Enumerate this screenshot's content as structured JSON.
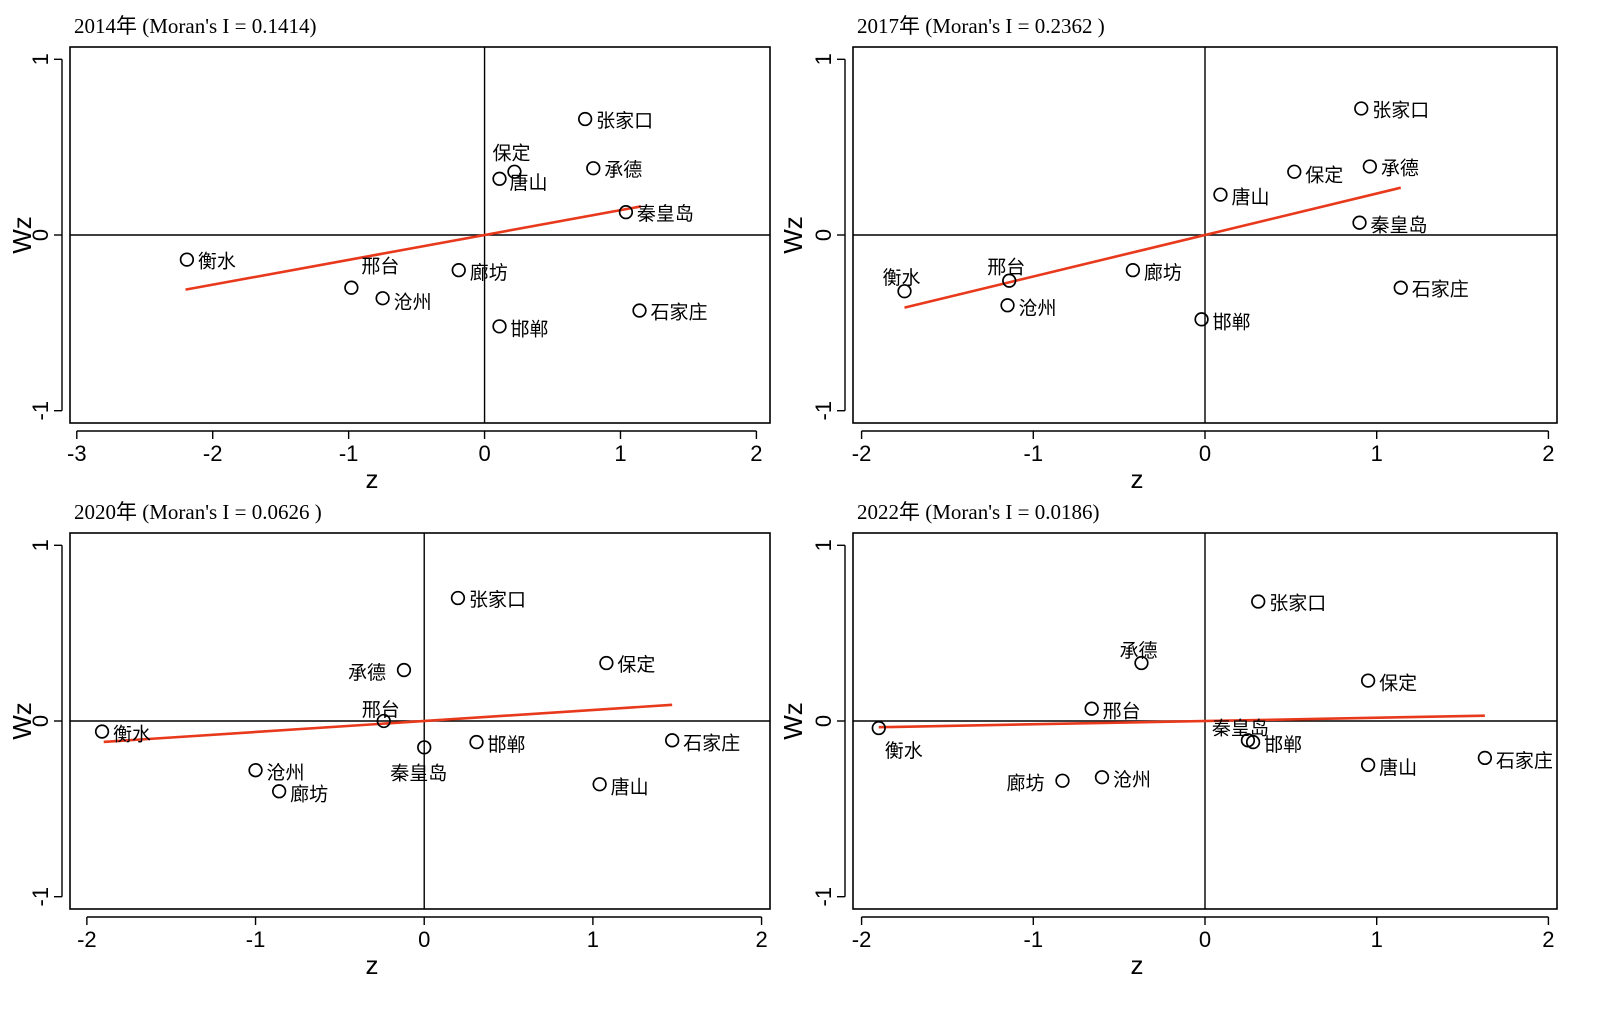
{
  "chart_data": [
    {
      "type": "scatter",
      "title": "2014年 (Moran's I = 0.1414)",
      "xlabel": "z",
      "ylabel": "Wz",
      "xlim": [
        -3.05,
        2.1
      ],
      "ylim": [
        -1.07,
        1.07
      ],
      "xticks": [
        -3,
        -2,
        -1,
        0,
        1,
        2
      ],
      "xtick_labels": [
        "-3",
        "-2",
        "-1",
        "0",
        "1",
        "2"
      ],
      "yticks": [
        -1,
        0,
        1
      ],
      "ytick_labels": [
        "-1",
        "0",
        "1"
      ],
      "fit_line": {
        "slope": 0.1414,
        "x_range": [
          -2.2,
          1.15
        ]
      },
      "colors": {
        "fit_line": "#e8391c",
        "marker": "#000000"
      },
      "points": [
        {
          "name": "张家口",
          "x": 0.74,
          "y": 0.66
        },
        {
          "name": "保定",
          "x": 0.22,
          "y": 0.36
        },
        {
          "name": "唐山",
          "x": 0.11,
          "y": 0.32
        },
        {
          "name": "承德",
          "x": 0.8,
          "y": 0.38
        },
        {
          "name": "秦皇岛",
          "x": 1.04,
          "y": 0.13
        },
        {
          "name": "衡水",
          "x": -2.19,
          "y": -0.14
        },
        {
          "name": "邢台",
          "x": -0.98,
          "y": -0.3
        },
        {
          "name": "沧州",
          "x": -0.75,
          "y": -0.36
        },
        {
          "name": "廊坊",
          "x": -0.19,
          "y": -0.2
        },
        {
          "name": "邯郸",
          "x": 0.11,
          "y": -0.52
        },
        {
          "name": "石家庄",
          "x": 1.14,
          "y": -0.43
        }
      ]
    },
    {
      "type": "scatter",
      "title": "2017年 (Moran's I = 0.2362 )",
      "xlabel": "z",
      "ylabel": "Wz",
      "xlim": [
        -2.05,
        2.05
      ],
      "ylim": [
        -1.07,
        1.07
      ],
      "xticks": [
        -2,
        -1,
        0,
        1,
        2
      ],
      "xtick_labels": [
        "-2",
        "-1",
        "0",
        "1",
        "2"
      ],
      "yticks": [
        -1,
        0,
        1
      ],
      "ytick_labels": [
        "-1",
        "0",
        "1"
      ],
      "fit_line": {
        "slope": 0.2362,
        "x_range": [
          -1.75,
          1.14
        ]
      },
      "colors": {
        "fit_line": "#e8391c",
        "marker": "#000000"
      },
      "points": [
        {
          "name": "张家口",
          "x": 0.91,
          "y": 0.72
        },
        {
          "name": "承德",
          "x": 0.96,
          "y": 0.39
        },
        {
          "name": "保定",
          "x": 0.52,
          "y": 0.36
        },
        {
          "name": "唐山",
          "x": 0.09,
          "y": 0.23
        },
        {
          "name": "秦皇岛",
          "x": 0.9,
          "y": 0.07
        },
        {
          "name": "衡水",
          "x": -1.75,
          "y": -0.32
        },
        {
          "name": "邢台",
          "x": -1.14,
          "y": -0.26
        },
        {
          "name": "沧州",
          "x": -1.15,
          "y": -0.4
        },
        {
          "name": "廊坊",
          "x": -0.42,
          "y": -0.2
        },
        {
          "name": "邯郸",
          "x": -0.02,
          "y": -0.48
        },
        {
          "name": "石家庄",
          "x": 1.14,
          "y": -0.3
        }
      ]
    },
    {
      "type": "scatter",
      "title": "2020年 (Moran's I = 0.0626 )",
      "xlabel": "z",
      "ylabel": "Wz",
      "xlim": [
        -2.1,
        2.05
      ],
      "ylim": [
        -1.07,
        1.07
      ],
      "xticks": [
        -2,
        -1,
        0,
        1,
        2
      ],
      "xtick_labels": [
        "-2",
        "-1",
        "0",
        "1",
        "2"
      ],
      "yticks": [
        -1,
        0,
        1
      ],
      "ytick_labels": [
        "-1",
        "0",
        "1"
      ],
      "fit_line": {
        "slope": 0.0626,
        "x_range": [
          -1.9,
          1.47
        ]
      },
      "colors": {
        "fit_line": "#e8391c",
        "marker": "#000000"
      },
      "points": [
        {
          "name": "张家口",
          "x": 0.2,
          "y": 0.7
        },
        {
          "name": "承德",
          "x": -0.12,
          "y": 0.29
        },
        {
          "name": "保定",
          "x": 1.08,
          "y": 0.33
        },
        {
          "name": "邢台",
          "x": -0.24,
          "y": 0.0
        },
        {
          "name": "衡水",
          "x": -1.91,
          "y": -0.06
        },
        {
          "name": "秦皇岛",
          "x": 0.0,
          "y": -0.15
        },
        {
          "name": "邯郸",
          "x": 0.31,
          "y": -0.12
        },
        {
          "name": "石家庄",
          "x": 1.47,
          "y": -0.11
        },
        {
          "name": "沧州",
          "x": -1.0,
          "y": -0.28
        },
        {
          "name": "廊坊",
          "x": -0.86,
          "y": -0.4
        },
        {
          "name": "唐山",
          "x": 1.04,
          "y": -0.36
        }
      ]
    },
    {
      "type": "scatter",
      "title": "2022年 (Moran's I = 0.0186)",
      "xlabel": "z",
      "ylabel": "Wz",
      "xlim": [
        -2.05,
        2.05
      ],
      "ylim": [
        -1.07,
        1.07
      ],
      "xticks": [
        -2,
        -1,
        0,
        1,
        2
      ],
      "xtick_labels": [
        "-2",
        "-1",
        "0",
        "1",
        "2"
      ],
      "yticks": [
        -1,
        0,
        1
      ],
      "ytick_labels": [
        "-1",
        "0",
        "1"
      ],
      "fit_line": {
        "slope": 0.0186,
        "x_range": [
          -1.9,
          1.63
        ]
      },
      "colors": {
        "fit_line": "#e8391c",
        "marker": "#000000"
      },
      "points": [
        {
          "name": "张家口",
          "x": 0.31,
          "y": 0.68
        },
        {
          "name": "承德",
          "x": -0.37,
          "y": 0.33
        },
        {
          "name": "保定",
          "x": 0.95,
          "y": 0.23
        },
        {
          "name": "邢台",
          "x": -0.66,
          "y": 0.07
        },
        {
          "name": "衡水",
          "x": -1.9,
          "y": -0.04
        },
        {
          "name": "秦皇岛",
          "x": 0.25,
          "y": -0.11
        },
        {
          "name": "邯郸",
          "x": 0.28,
          "y": -0.12
        },
        {
          "name": "廊坊",
          "x": -0.83,
          "y": -0.34
        },
        {
          "name": "沧州",
          "x": -0.6,
          "y": -0.32
        },
        {
          "name": "唐山",
          "x": 0.95,
          "y": -0.25
        },
        {
          "name": "石家庄",
          "x": 1.63,
          "y": -0.21
        }
      ]
    }
  ]
}
